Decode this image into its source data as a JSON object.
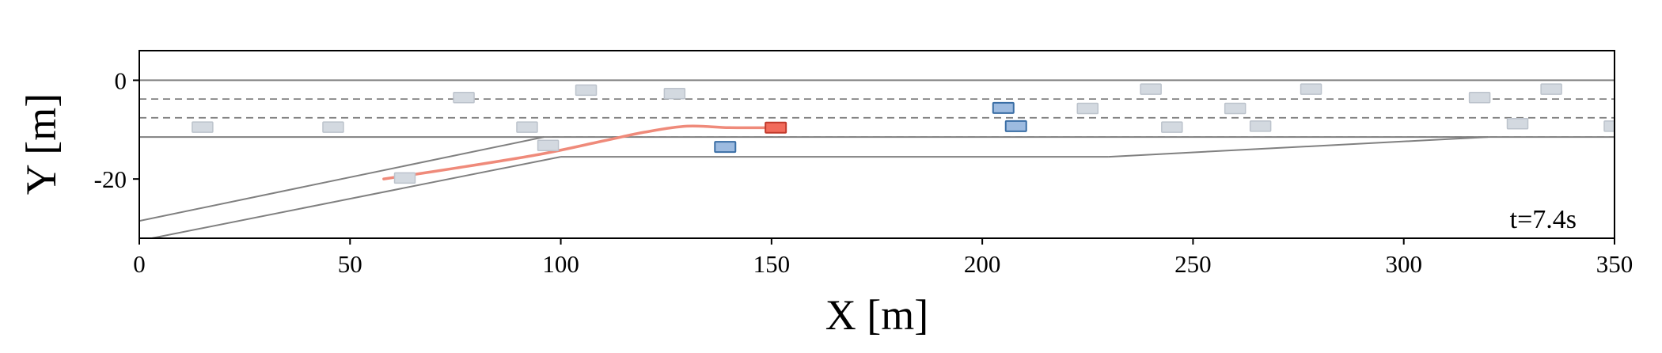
{
  "chart_data": {
    "type": "scatter",
    "xlabel": "X [m]",
    "ylabel": "Y [m]",
    "xlim": [
      0,
      350
    ],
    "ylim": [
      -32,
      6
    ],
    "xticks": [
      "0",
      "50",
      "100",
      "150",
      "200",
      "250",
      "300",
      "350"
    ],
    "yticks": [
      "0",
      "-20"
    ],
    "annotation": "t=7.4s",
    "colors": {
      "road_edge": "#808080",
      "lane_dash": "#808080",
      "trajectory": "#ef8a7a",
      "ego_fill": "#f26b5b",
      "ego_edge": "#c0392b",
      "interact_fill": "#9dbbe0",
      "interact_edge": "#3a6ea5",
      "background_fill": "#d3d9e0",
      "background_edge": "#bcc3cc"
    },
    "road": {
      "solid_lines": [
        [
          [
            0,
            0
          ],
          [
            350,
            0
          ]
        ],
        [
          [
            0,
            -11.5
          ],
          [
            350,
            -11.5
          ]
        ],
        [
          [
            0,
            -28.5
          ],
          [
            96,
            -11.5
          ]
        ],
        [
          [
            0,
            -32.5
          ],
          [
            100,
            -15.5
          ]
        ],
        [
          [
            100,
            -15.5
          ],
          [
            230,
            -15.5
          ]
        ],
        [
          [
            230,
            -15.5
          ],
          [
            320,
            -11.5
          ]
        ]
      ],
      "dashed_lines": [
        [
          [
            0,
            -3.8
          ],
          [
            350,
            -3.8
          ]
        ],
        [
          [
            0,
            -7.6
          ],
          [
            350,
            -7.6
          ]
        ],
        [
          [
            98,
            -11.5
          ],
          [
            350,
            -11.5
          ]
        ]
      ]
    },
    "trajectory": [
      [
        58,
        -20.0
      ],
      [
        75,
        -17.8
      ],
      [
        95,
        -15.0
      ],
      [
        110,
        -12.3
      ],
      [
        120,
        -10.5
      ],
      [
        130,
        -9.3
      ],
      [
        140,
        -9.6
      ],
      [
        151,
        -9.6
      ]
    ],
    "ego_vehicle": {
      "x": 151,
      "y": -9.6
    },
    "interacting_vehicles": [
      {
        "x": 139,
        "y": -13.5
      },
      {
        "x": 205,
        "y": -5.6
      },
      {
        "x": 208,
        "y": -9.3
      }
    ],
    "background_vehicles": [
      {
        "x": 15,
        "y": -9.5
      },
      {
        "x": 46,
        "y": -9.5
      },
      {
        "x": 77,
        "y": -3.5
      },
      {
        "x": 92,
        "y": -9.5
      },
      {
        "x": 106,
        "y": -2.0
      },
      {
        "x": 127,
        "y": -2.7
      },
      {
        "x": 97,
        "y": -13.2
      },
      {
        "x": 63,
        "y": -19.8
      },
      {
        "x": 225,
        "y": -5.7
      },
      {
        "x": 240,
        "y": -1.8
      },
      {
        "x": 245,
        "y": -9.5
      },
      {
        "x": 260,
        "y": -5.7
      },
      {
        "x": 266,
        "y": -9.3
      },
      {
        "x": 278,
        "y": -1.8
      },
      {
        "x": 318,
        "y": -3.5
      },
      {
        "x": 327,
        "y": -8.8
      },
      {
        "x": 335,
        "y": -1.8
      },
      {
        "x": 350,
        "y": -9.3
      }
    ]
  }
}
